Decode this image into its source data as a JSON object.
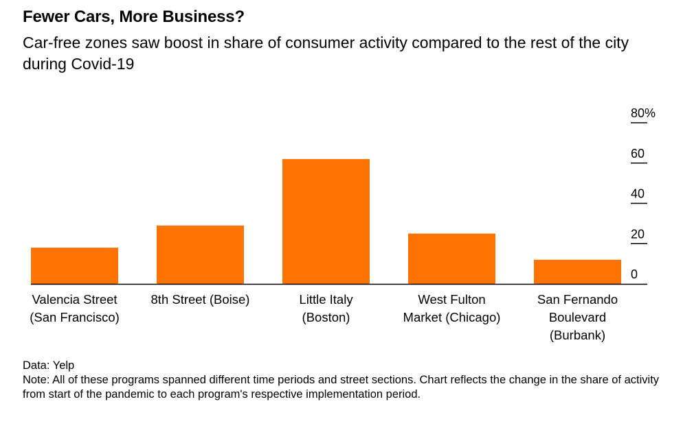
{
  "header": {
    "title": "Fewer Cars, More Business?",
    "subtitle": "Car-free zones saw boost in share of consumer activity compared to the rest of the city during Covid-19"
  },
  "chart_data": {
    "type": "bar",
    "categories": [
      [
        "Valencia Street",
        "(San Francisco)"
      ],
      [
        "8th Street (Boise)"
      ],
      [
        "Little Italy",
        "(Boston)"
      ],
      [
        "West Fulton",
        "Market (Chicago)"
      ],
      [
        "San Fernando",
        "Boulevard",
        "(Burbank)"
      ]
    ],
    "values": [
      18,
      29,
      62,
      25,
      12
    ],
    "ylim": [
      0,
      80
    ],
    "yticks": [
      0,
      20,
      40,
      60,
      80
    ],
    "ytick_labels": [
      "0",
      "20",
      "40",
      "60",
      "80%"
    ],
    "bar_color": "#ff7300",
    "axis_color": "#000000",
    "grid": false,
    "y_axis_side": "right"
  },
  "footer": {
    "source": "Data: Yelp",
    "note": "Note: All of these programs spanned different time periods and street sections. Chart reflects the change in the share of activity from start of the pandemic to each program's respective implementation period."
  }
}
